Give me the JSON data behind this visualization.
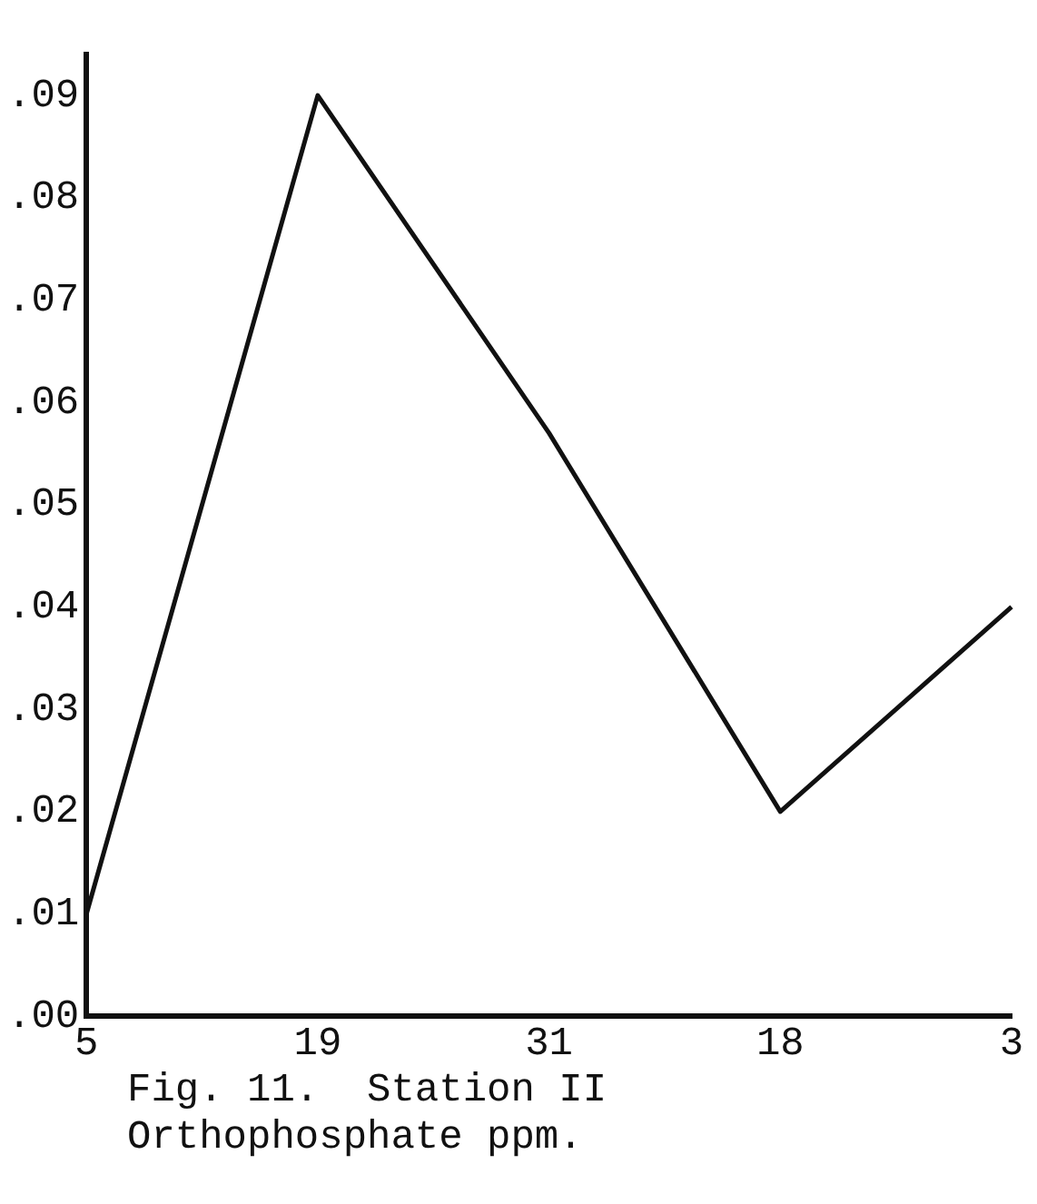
{
  "chart_data": {
    "type": "line",
    "title": "Fig. 11.  Station II",
    "subtitle": "Orthophosphate ppm.",
    "categories": [
      "5",
      "19",
      "31",
      "18",
      "3"
    ],
    "series": [
      {
        "color": "#111111",
        "values": [
          0.01,
          0.09,
          0.057,
          0.02,
          0.04
        ]
      }
    ],
    "ylim": [
      0,
      0.094
    ],
    "yticks": [
      {
        "value": 0,
        "label": ".00"
      },
      {
        "value": 0.01,
        "label": ".01"
      },
      {
        "value": 0.02,
        "label": ".02"
      },
      {
        "value": 0.03,
        "label": ".03"
      },
      {
        "value": 0.04,
        "label": ".04"
      },
      {
        "value": 0.05,
        "label": ".05"
      },
      {
        "value": 0.06,
        "label": ".06"
      },
      {
        "value": 0.07,
        "label": ".07"
      },
      {
        "value": 0.08,
        "label": ".08"
      },
      {
        "value": 0.09,
        "label": ".09"
      }
    ],
    "grid": false,
    "legend": false,
    "marker": "none",
    "line_style": "solid"
  }
}
